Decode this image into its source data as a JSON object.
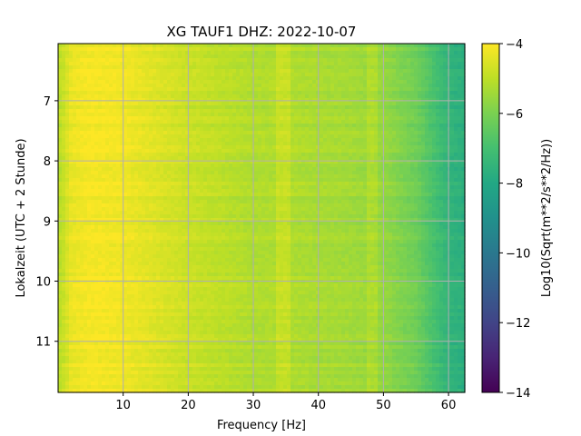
{
  "chart_data": {
    "type": "heatmap",
    "title": "XG TAUF1  DHZ: 2022-10-07",
    "xlabel": "Frequency [Hz]",
    "ylabel": "Lokalzeit (UTC + 2 Stunde)",
    "colorbar_label": "Log10(Sqrt(m**2/s**2/Hz))",
    "xlim": [
      0,
      62.5
    ],
    "ylim": [
      11.85,
      6.05
    ],
    "y_inverted": true,
    "x_ticks": [
      10,
      20,
      30,
      40,
      50,
      60
    ],
    "x_tick_labels": [
      "10",
      "20",
      "30",
      "40",
      "50",
      "60"
    ],
    "y_ticks": [
      7,
      8,
      9,
      10,
      11
    ],
    "y_tick_labels": [
      "7",
      "8",
      "9",
      "10",
      "11"
    ],
    "colorbar": {
      "colormap": "viridis",
      "range": [
        -14,
        -4
      ],
      "ticks": [
        -4,
        -6,
        -8,
        -10,
        -12,
        -14
      ],
      "tick_labels": [
        "−4",
        "−6",
        "−8",
        "−10",
        "−12",
        "−14"
      ]
    },
    "grid": true,
    "approx_profile": {
      "frequency_hz": [
        0.5,
        2,
        5,
        10,
        15,
        20,
        25,
        30,
        35,
        40,
        45,
        50,
        55,
        58,
        60,
        62.5
      ],
      "log10_asd": [
        -5.0,
        -4.3,
        -4.1,
        -4.2,
        -4.5,
        -4.8,
        -5.0,
        -5.2,
        -5.2,
        -5.3,
        -5.4,
        -5.6,
        -6.2,
        -7.0,
        -7.5,
        -7.7
      ]
    }
  }
}
